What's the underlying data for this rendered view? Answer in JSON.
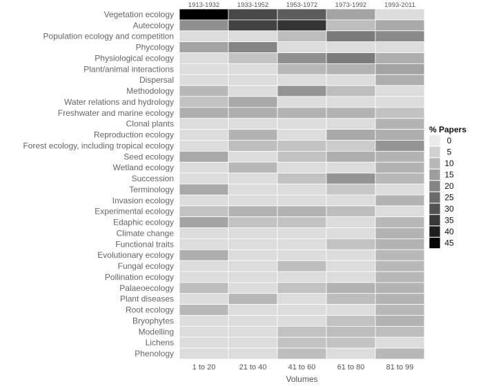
{
  "chart_data": {
    "type": "heatmap",
    "rows": [
      "Vegetation ecology",
      "Autecology",
      "Population ecology and competition",
      "Phycology",
      "Physiological ecology",
      "Plant/animal interactions",
      "Dispersal",
      "Methodology",
      "Water relations and hydrology",
      "Freshwater and marine ecology",
      "Clonal plants",
      "Reproduction ecology",
      "Forest ecology, including tropical ecology",
      "Seed ecology",
      "Wetland ecology",
      "Succession",
      "Terminology",
      "Invasion ecology",
      "Experimental ecology",
      "Edaphic ecology",
      "Climate change",
      "Functional traits",
      "Evolutionary ecology",
      "Fungal ecology",
      "Pollination ecology",
      "Palaeoecology",
      "Plant diseases",
      "Root ecology",
      "Bryophytes",
      "Modelling",
      "Lichens",
      "Phenology"
    ],
    "columns": [
      "1 to 20",
      "21 to 40",
      "41 to 60",
      "61 to 80",
      "81 to 99"
    ],
    "column_periods": [
      "1913-1932",
      "1933-1952",
      "1953-1972",
      "1973-1992",
      "1993-2011"
    ],
    "xlabel": "Volumes",
    "values": [
      [
        46,
        32,
        28,
        14,
        3
      ],
      [
        18,
        33,
        36,
        9,
        13
      ],
      [
        3,
        3,
        9,
        22,
        19
      ],
      [
        14,
        20,
        3,
        3,
        3
      ],
      [
        3,
        8,
        18,
        22,
        12
      ],
      [
        3,
        3,
        10,
        11,
        14
      ],
      [
        3,
        3,
        3,
        3,
        12
      ],
      [
        10,
        3,
        17,
        9,
        3
      ],
      [
        8,
        13,
        3,
        3,
        3
      ],
      [
        12,
        12,
        11,
        11,
        8
      ],
      [
        3,
        3,
        3,
        3,
        11
      ],
      [
        3,
        11,
        3,
        13,
        12
      ],
      [
        3,
        9,
        8,
        6,
        17
      ],
      [
        13,
        3,
        8,
        12,
        11
      ],
      [
        3,
        10,
        3,
        3,
        11
      ],
      [
        3,
        3,
        8,
        17,
        10
      ],
      [
        13,
        3,
        3,
        7,
        3
      ],
      [
        3,
        3,
        3,
        3,
        11
      ],
      [
        8,
        11,
        11,
        9,
        3
      ],
      [
        14,
        8,
        8,
        3,
        10
      ],
      [
        3,
        3,
        3,
        3,
        11
      ],
      [
        3,
        3,
        3,
        8,
        11
      ],
      [
        12,
        3,
        3,
        3,
        10
      ],
      [
        3,
        3,
        9,
        3,
        10
      ],
      [
        3,
        3,
        3,
        3,
        10
      ],
      [
        9,
        3,
        8,
        11,
        11
      ],
      [
        3,
        10,
        3,
        9,
        11
      ],
      [
        10,
        3,
        3,
        3,
        10
      ],
      [
        3,
        3,
        3,
        8,
        11
      ],
      [
        3,
        3,
        8,
        9,
        9
      ],
      [
        3,
        3,
        8,
        8,
        3
      ],
      [
        3,
        3,
        9,
        3,
        10
      ]
    ],
    "legend": {
      "title": "% Papers",
      "ticks": [
        "0",
        "5",
        "10",
        "15",
        "20",
        "25",
        "30",
        "35",
        "40",
        "45"
      ],
      "placement": "right"
    },
    "scale_range": [
      0,
      46
    ],
    "color_low": "#ebebeb",
    "color_high": "#000000",
    "grid": false
  }
}
